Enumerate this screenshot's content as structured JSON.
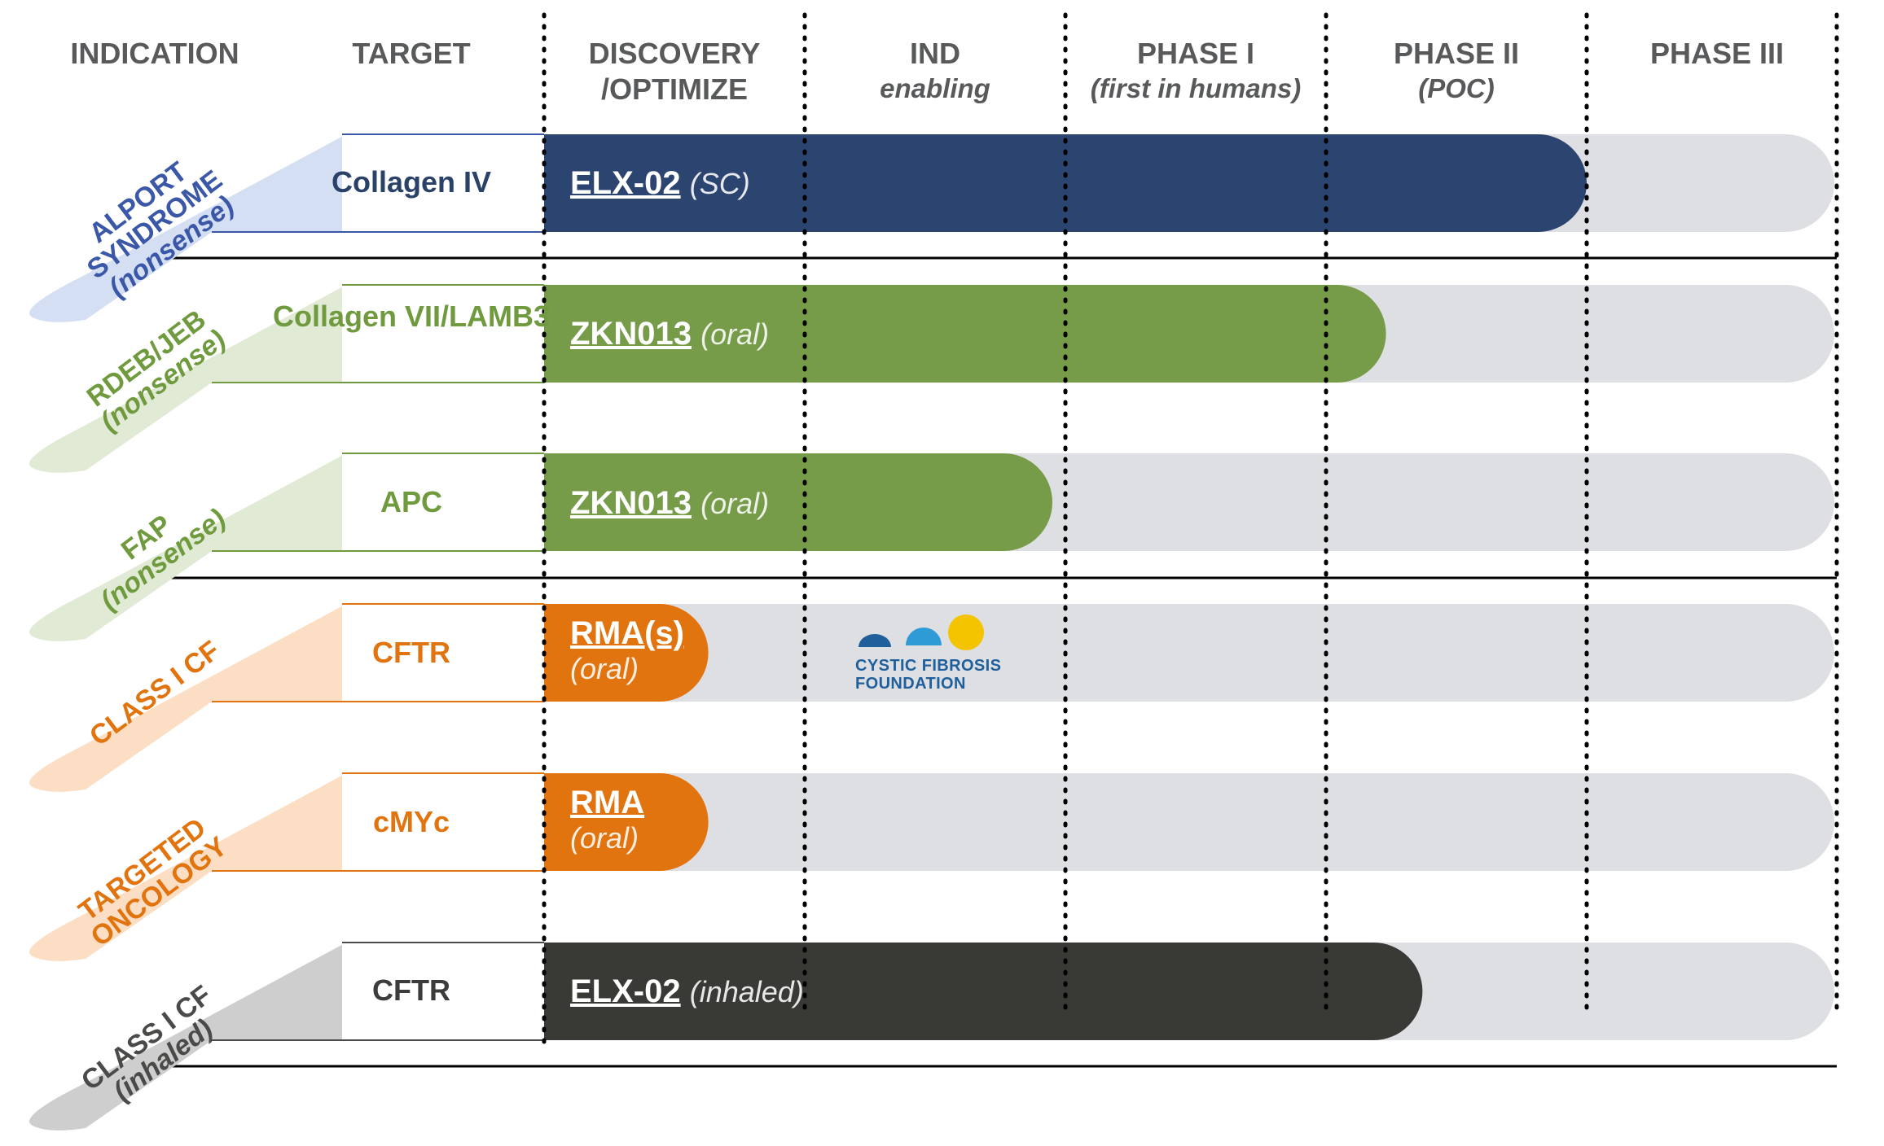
{
  "chart_data": {
    "type": "timeline",
    "columns": {
      "indication": "INDICATION",
      "target": "TARGET",
      "phases": [
        {
          "name": "DISCOVERY",
          "sub": "/OPTIMIZE",
          "sub_italic": false
        },
        {
          "name": "IND",
          "sub": "enabling",
          "sub_italic": true
        },
        {
          "name": "PHASE I",
          "sub": "(first in humans)",
          "sub_italic": true
        },
        {
          "name": "PHASE II",
          "sub": "(POC)",
          "sub_italic": true
        },
        {
          "name": "PHASE III",
          "sub": "",
          "sub_italic": false
        }
      ]
    },
    "programs": [
      {
        "indication": "ALPORT SYNDROME",
        "indication_sub": "(nonsense)",
        "target": "Collagen IV",
        "drug": "ELX-02",
        "route": "(SC)",
        "progress_phases": 4.0,
        "color": "#2c4470",
        "indication_color": "#3a57a8",
        "tab_color": "#d3ddf3"
      },
      {
        "indication": "RDEB/JEB",
        "indication_sub": "(nonsense)",
        "target": "Collagen VII/LAMB3",
        "drug": "ZKN013",
        "route": "(oral)",
        "progress_phases": 3.23,
        "color": "#769c4a",
        "indication_color": "#6f9a3e",
        "tab_color": "#dfe9d3"
      },
      {
        "indication": "FAP",
        "indication_sub": "(nonsense)",
        "target": "APC",
        "drug": "ZKN013",
        "route": "(oral)",
        "progress_phases": 1.95,
        "color": "#769c4a",
        "indication_color": "#6f9a3e",
        "tab_color": "#dfe9d3"
      },
      {
        "indication": "CLASS I CF",
        "indication_sub": "",
        "target": "CFTR",
        "drug": "RMA(s)",
        "route": "(oral)",
        "progress_phases": 0.63,
        "color": "#e2740f",
        "indication_color": "#e2740f",
        "tab_color": "#fbdcc0"
      },
      {
        "indication": "TARGETED ONCOLOGY",
        "indication_sub": "",
        "target": "cMYc",
        "drug": "RMA",
        "route": "(oral)",
        "progress_phases": 0.63,
        "color": "#e2740f",
        "indication_color": "#e2740f",
        "tab_color": "#fbdcc0"
      },
      {
        "indication": "CLASS I CF",
        "indication_sub": "(inhaled)",
        "target": "CFTR",
        "drug": "ELX-02",
        "route": "(inhaled)",
        "progress_phases": 3.37,
        "color": "#393935",
        "indication_color": "#4a4a48",
        "tab_color": "#cbcbcb"
      }
    ],
    "partner_logo": {
      "line1": "CYSTIC FIBROSIS",
      "line2": "FOUNDATION"
    }
  }
}
